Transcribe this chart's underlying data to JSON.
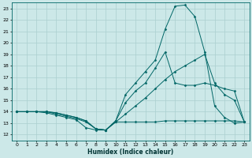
{
  "xlabel": "Humidex (Indice chaleur)",
  "ylabel": "",
  "bg_color": "#cce8e8",
  "grid_color": "#aacfcf",
  "line_color": "#006666",
  "xlim": [
    -0.5,
    23.5
  ],
  "ylim": [
    11.5,
    23.5
  ],
  "yticks": [
    12,
    13,
    14,
    15,
    16,
    17,
    18,
    19,
    20,
    21,
    22,
    23
  ],
  "xticks": [
    0,
    1,
    2,
    3,
    4,
    5,
    6,
    7,
    8,
    9,
    10,
    11,
    12,
    13,
    14,
    15,
    16,
    17,
    18,
    19,
    20,
    21,
    22,
    23
  ],
  "lines": [
    {
      "x": [
        0,
        1,
        2,
        3,
        4,
        5,
        6,
        7,
        8,
        9,
        10,
        11,
        12,
        13,
        14,
        15,
        16,
        17,
        18,
        19,
        20,
        21,
        22,
        23
      ],
      "y": [
        14,
        14,
        14,
        13.9,
        13.7,
        13.5,
        13.3,
        12.6,
        12.4,
        12.4,
        13.1,
        13.1,
        13.1,
        13.1,
        13.1,
        13.2,
        13.2,
        13.2,
        13.2,
        13.2,
        13.2,
        13.2,
        13.2,
        13.1
      ]
    },
    {
      "x": [
        0,
        1,
        2,
        3,
        4,
        5,
        6,
        7,
        8,
        9,
        10,
        11,
        12,
        13,
        14,
        15,
        16,
        17,
        18,
        19,
        20,
        21,
        22,
        23
      ],
      "y": [
        14,
        14,
        14,
        14,
        13.8,
        13.6,
        13.4,
        13.1,
        12.5,
        12.4,
        13.1,
        13.8,
        14.5,
        15.2,
        16.0,
        16.8,
        17.5,
        18.0,
        18.5,
        19.0,
        16.5,
        15.5,
        15.0,
        13.1
      ]
    },
    {
      "x": [
        0,
        1,
        2,
        3,
        4,
        5,
        6,
        7,
        8,
        9,
        10,
        11,
        12,
        13,
        14,
        15,
        16,
        17,
        18,
        19,
        20,
        21,
        22,
        23
      ],
      "y": [
        14,
        14,
        14,
        14,
        13.9,
        13.7,
        13.5,
        13.2,
        12.5,
        12.4,
        13.2,
        14.8,
        15.8,
        16.5,
        17.8,
        19.2,
        16.5,
        16.3,
        16.3,
        16.5,
        16.3,
        16.0,
        15.8,
        13.1
      ]
    },
    {
      "x": [
        0,
        1,
        2,
        3,
        4,
        5,
        6,
        7,
        8,
        9,
        10,
        11,
        12,
        13,
        14,
        15,
        16,
        17,
        18,
        19,
        20,
        21,
        22,
        23
      ],
      "y": [
        14,
        14,
        14,
        14,
        13.9,
        13.7,
        13.5,
        13.2,
        12.5,
        12.4,
        13.2,
        15.5,
        16.5,
        17.5,
        18.5,
        21.2,
        23.2,
        23.3,
        22.3,
        19.2,
        14.5,
        13.5,
        13.0,
        13.1
      ]
    }
  ]
}
